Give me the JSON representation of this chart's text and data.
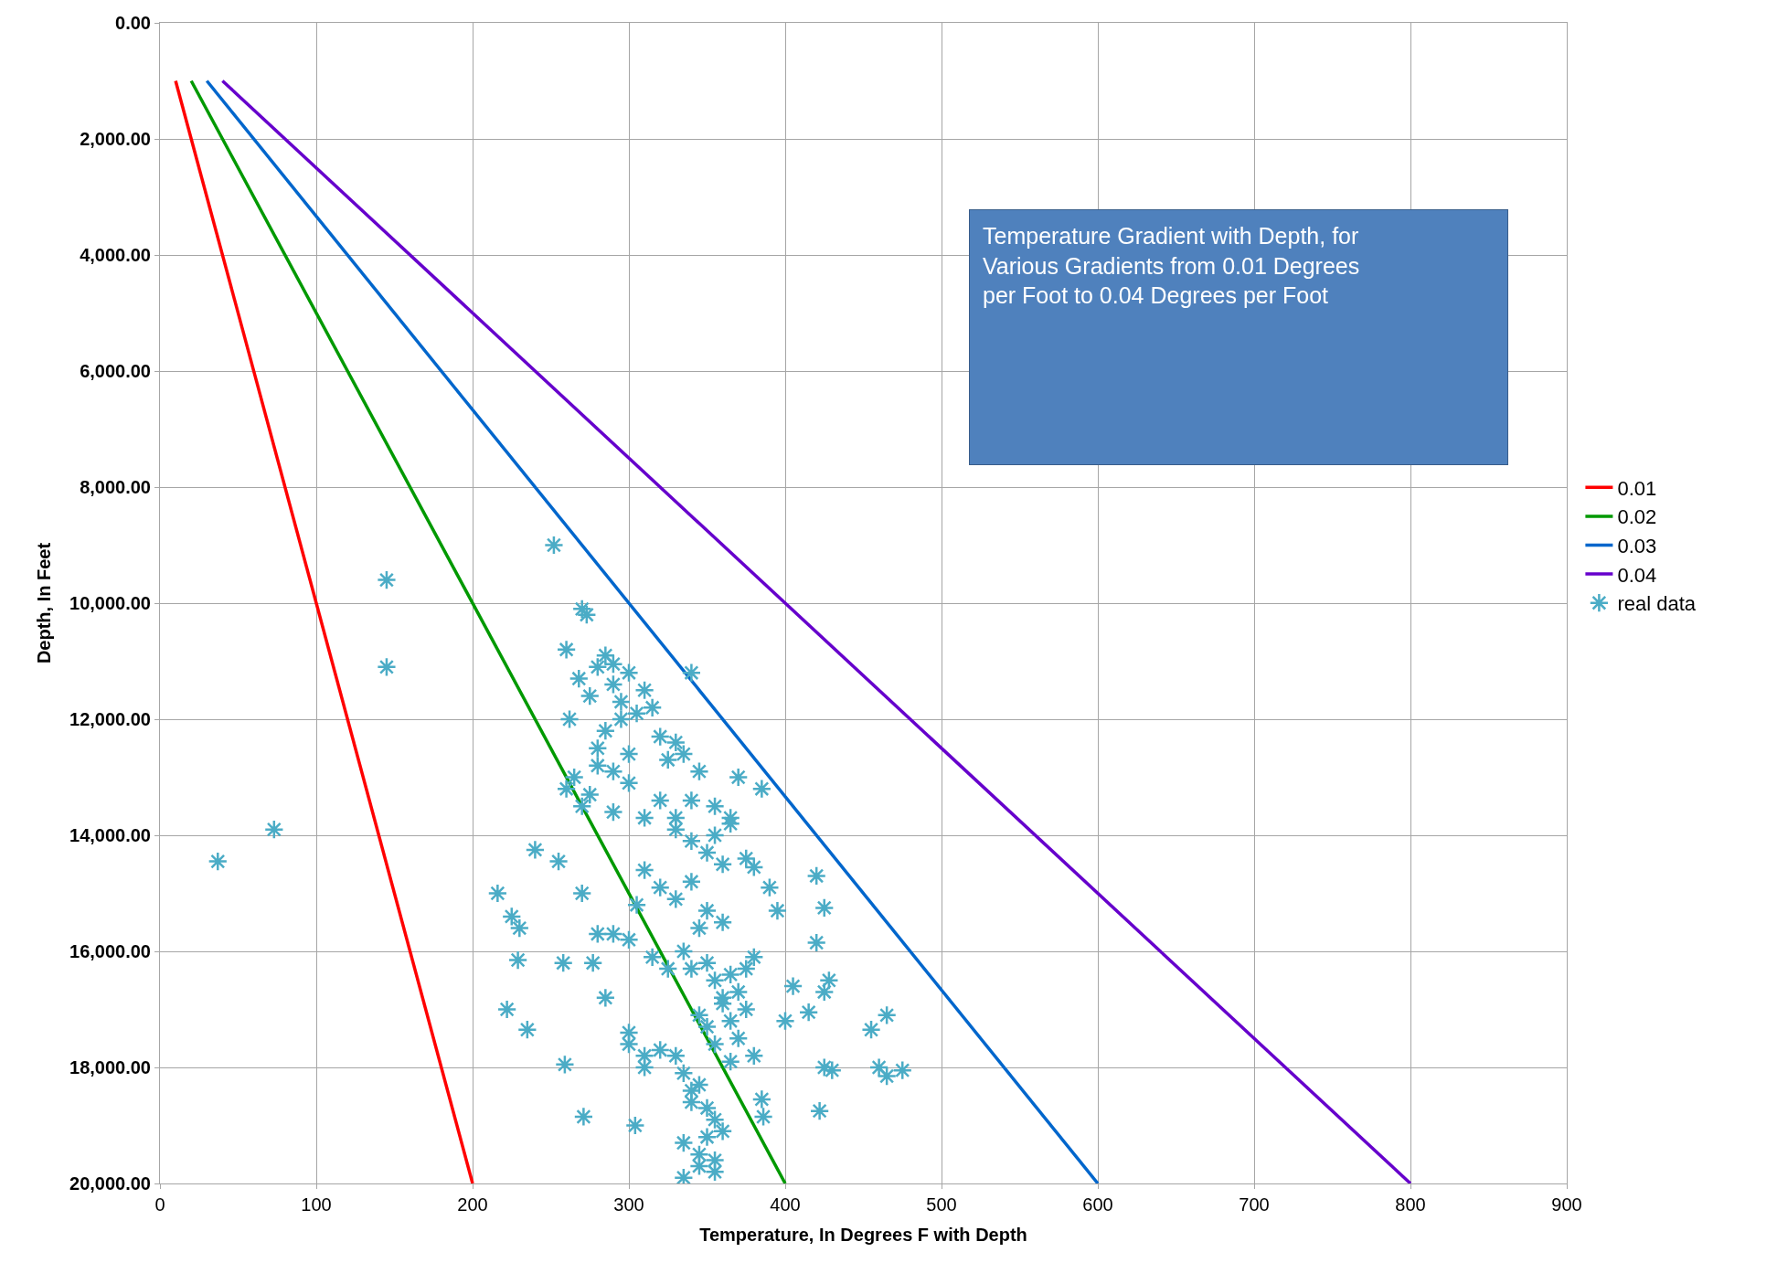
{
  "chart_data": {
    "type": "line",
    "xlabel": "Temperature, In Degrees F with Depth",
    "ylabel": "Depth, In Feet",
    "xlim": [
      0,
      900
    ],
    "xticks": [
      0,
      100,
      200,
      300,
      400,
      500,
      600,
      700,
      800,
      900
    ],
    "ylim": [
      20000,
      0
    ],
    "yticks": [
      {
        "value": 0,
        "label": "0.00"
      },
      {
        "value": 2000,
        "label": "2,000.00"
      },
      {
        "value": 4000,
        "label": "4,000.00"
      },
      {
        "value": 6000,
        "label": "6,000.00"
      },
      {
        "value": 8000,
        "label": "8,000.00"
      },
      {
        "value": 10000,
        "label": "10,000.00"
      },
      {
        "value": 12000,
        "label": "12,000.00"
      },
      {
        "value": 14000,
        "label": "14,000.00"
      },
      {
        "value": 16000,
        "label": "16,000.00"
      },
      {
        "value": 18000,
        "label": "18,000.00"
      },
      {
        "value": 20000,
        "label": "20,000.00"
      }
    ],
    "grid": true,
    "legend": "right",
    "annotations": [
      "Temperature Gradient with Depth, for Various Gradients from 0.01 Degrees per Foot to 0.04 Degrees per Foot"
    ],
    "series": [
      {
        "name": "0.01",
        "color": "#ff0000",
        "x": [
          10,
          200
        ],
        "values": [
          1000,
          20000
        ]
      },
      {
        "name": "0.02",
        "color": "#009900",
        "x": [
          20,
          400
        ],
        "values": [
          1000,
          20000
        ]
      },
      {
        "name": "0.03",
        "color": "#0066cc",
        "x": [
          30,
          600
        ],
        "values": [
          1000,
          20000
        ]
      },
      {
        "name": "0.04",
        "color": "#6600cc",
        "x": [
          40,
          800
        ],
        "values": [
          1000,
          20000
        ]
      },
      {
        "name": "real data",
        "color": "#4bacc6",
        "type": "scatter",
        "marker": "cross",
        "x": [
          37,
          73,
          145,
          145,
          252,
          270,
          273,
          340,
          216,
          225,
          230,
          229,
          222,
          235,
          259,
          271,
          304,
          258,
          277,
          240,
          255,
          420,
          425,
          420,
          428,
          425,
          415,
          455,
          465,
          460,
          465,
          475,
          430,
          425,
          422,
          385,
          386,
          380,
          370,
          385,
          365,
          375,
          380,
          260,
          262,
          268,
          275,
          280,
          285,
          290,
          295,
          300,
          305,
          310,
          285,
          290,
          295,
          280,
          300,
          290,
          315,
          320,
          325,
          330,
          335,
          340,
          345,
          260,
          265,
          270,
          275,
          280,
          290,
          300,
          310,
          320,
          330,
          340,
          350,
          355,
          360,
          365,
          310,
          320,
          330,
          340,
          350,
          360,
          300,
          305,
          315,
          325,
          335,
          345,
          350,
          355,
          360,
          365,
          370,
          375,
          380,
          340,
          345,
          350,
          355,
          360,
          365,
          370,
          375,
          330,
          335,
          340,
          345,
          350,
          355,
          360,
          335,
          340,
          345,
          350,
          355,
          335,
          345,
          355,
          365,
          320,
          310,
          300,
          290,
          395,
          400,
          405,
          390,
          270,
          280,
          285,
          300,
          310,
          330,
          355
        ],
        "values": [
          14450,
          13900,
          9600,
          11100,
          9000,
          10100,
          10200,
          11200,
          15000,
          15400,
          15600,
          16150,
          17000,
          17350,
          17950,
          18850,
          19000,
          16200,
          16200,
          14250,
          14450,
          14700,
          15250,
          15850,
          16500,
          16700,
          17050,
          17350,
          17100,
          18000,
          18150,
          18050,
          18050,
          18000,
          18750,
          18550,
          18850,
          17800,
          13000,
          13200,
          13700,
          14400,
          14550,
          10800,
          12000,
          11300,
          11600,
          11100,
          10900,
          11400,
          11700,
          11200,
          11900,
          11500,
          12200,
          11050,
          12000,
          12500,
          12600,
          12900,
          11800,
          12300,
          12700,
          12400,
          12600,
          13400,
          12900,
          13200,
          13000,
          13500,
          13300,
          12800,
          13600,
          13100,
          13700,
          13400,
          13900,
          14100,
          14300,
          14000,
          14500,
          13800,
          14600,
          14900,
          15100,
          14800,
          15300,
          15500,
          15800,
          15200,
          16100,
          16300,
          16000,
          15600,
          16200,
          16500,
          16900,
          16400,
          16700,
          16300,
          16100,
          16300,
          17100,
          17300,
          17600,
          16800,
          17200,
          17500,
          17000,
          17800,
          18100,
          18400,
          18300,
          18700,
          18900,
          19100,
          19300,
          18600,
          19500,
          19200,
          19800,
          19900,
          19700,
          19600,
          17900,
          17700,
          17800,
          17400,
          15700,
          15300,
          17200,
          16600,
          14900,
          15000,
          15700,
          16800,
          17600,
          18000,
          13700,
          13500
        ]
      }
    ]
  }
}
